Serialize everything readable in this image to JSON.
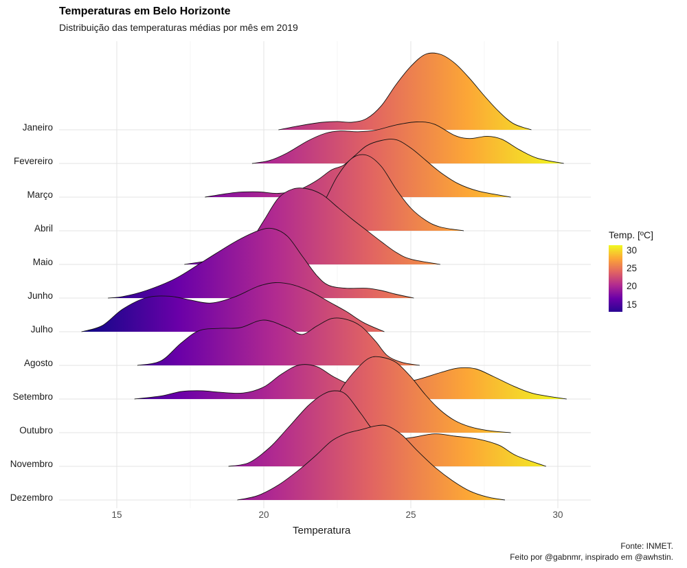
{
  "header": {
    "title": "Temperaturas em Belo Horizonte",
    "subtitle": "Distribuição das temperaturas médias por mês em 2019"
  },
  "caption": {
    "line1": "Fonte: INMET.",
    "line2": "Feito por @gabnmr, inspirado em @awhstin."
  },
  "legend": {
    "title": "Temp. [ºC]",
    "ticks": [
      "30",
      "25",
      "20",
      "15"
    ],
    "colors": [
      "#0d0887",
      "#6a00a8",
      "#b12a90",
      "#e16462",
      "#fca636",
      "#f0f921"
    ]
  },
  "chart_data": {
    "type": "ridgeline",
    "title": "Temperaturas em Belo Horizonte",
    "subtitle": "Distribuição das temperaturas médias por mês em 2019",
    "xlabel": "Temperatura",
    "ylabel": "",
    "xlim": [
      13.0,
      31.2
    ],
    "xticks": [
      15,
      20,
      25,
      30
    ],
    "color_scale": "plasma",
    "color_range": [
      13.6,
      31.2
    ],
    "grid": true,
    "legend_position": "right",
    "series": [
      {
        "name": "Janeiro",
        "range": [
          20.5,
          29.1
        ],
        "points": [
          [
            20.5,
            0
          ],
          [
            21.3,
            0.06
          ],
          [
            22,
            0.1
          ],
          [
            22.5,
            0.11
          ],
          [
            23,
            0.1
          ],
          [
            23.5,
            0.15
          ],
          [
            24,
            0.32
          ],
          [
            24.5,
            0.6
          ],
          [
            25,
            0.84
          ],
          [
            25.5,
            1.0
          ],
          [
            26,
            1.0
          ],
          [
            26.5,
            0.88
          ],
          [
            27,
            0.68
          ],
          [
            27.5,
            0.45
          ],
          [
            28,
            0.24
          ],
          [
            28.5,
            0.08
          ],
          [
            29.1,
            0
          ]
        ]
      },
      {
        "name": "Fevereiro",
        "range": [
          19.6,
          30.2
        ],
        "points": [
          [
            19.6,
            0
          ],
          [
            20.2,
            0.04
          ],
          [
            20.8,
            0.14
          ],
          [
            21.5,
            0.3
          ],
          [
            22.1,
            0.4
          ],
          [
            22.6,
            0.43
          ],
          [
            23.2,
            0.42
          ],
          [
            23.8,
            0.44
          ],
          [
            24.5,
            0.51
          ],
          [
            25.2,
            0.55
          ],
          [
            25.8,
            0.52
          ],
          [
            26.5,
            0.37
          ],
          [
            27,
            0.33
          ],
          [
            27.6,
            0.36
          ],
          [
            28.1,
            0.32
          ],
          [
            28.7,
            0.18
          ],
          [
            29.3,
            0.07
          ],
          [
            30.2,
            0
          ]
        ]
      },
      {
        "name": "Março",
        "range": [
          18.0,
          28.4
        ],
        "points": [
          [
            18,
            0
          ],
          [
            19,
            0.06
          ],
          [
            19.8,
            0.07
          ],
          [
            20.5,
            0.05
          ],
          [
            21.2,
            0.1
          ],
          [
            21.8,
            0.22
          ],
          [
            22.3,
            0.36
          ],
          [
            22.7,
            0.42
          ],
          [
            23.1,
            0.55
          ],
          [
            23.5,
            0.68
          ],
          [
            24,
            0.75
          ],
          [
            24.5,
            0.76
          ],
          [
            25,
            0.65
          ],
          [
            25.5,
            0.49
          ],
          [
            26,
            0.33
          ],
          [
            26.6,
            0.18
          ],
          [
            27.3,
            0.08
          ],
          [
            28.4,
            0
          ]
        ]
      },
      {
        "name": "Abril",
        "range": [
          20.4,
          26.8
        ],
        "points": [
          [
            20.4,
            0
          ],
          [
            21,
            0.02
          ],
          [
            21.5,
            0.1
          ],
          [
            22,
            0.35
          ],
          [
            22.5,
            0.72
          ],
          [
            23,
            0.96
          ],
          [
            23.5,
            1.0
          ],
          [
            24,
            0.85
          ],
          [
            24.5,
            0.55
          ],
          [
            25,
            0.3
          ],
          [
            25.5,
            0.14
          ],
          [
            26,
            0.05
          ],
          [
            26.8,
            0
          ]
        ]
      },
      {
        "name": "Maio",
        "range": [
          17.3,
          26.0
        ],
        "points": [
          [
            17.3,
            0
          ],
          [
            18,
            0.04
          ],
          [
            18.5,
            0.06
          ],
          [
            19,
            0.12
          ],
          [
            19.5,
            0.28
          ],
          [
            20,
            0.58
          ],
          [
            20.5,
            0.88
          ],
          [
            21,
            1.0
          ],
          [
            21.5,
            1.0
          ],
          [
            22,
            0.92
          ],
          [
            22.5,
            0.76
          ],
          [
            23,
            0.6
          ],
          [
            23.5,
            0.45
          ],
          [
            24,
            0.3
          ],
          [
            24.5,
            0.16
          ],
          [
            25,
            0.07
          ],
          [
            26,
            0
          ]
        ]
      },
      {
        "name": "Junho",
        "range": [
          14.7,
          25.1
        ],
        "points": [
          [
            14.7,
            0
          ],
          [
            15.2,
            0.02
          ],
          [
            16,
            0.1
          ],
          [
            17,
            0.26
          ],
          [
            18,
            0.5
          ],
          [
            19,
            0.74
          ],
          [
            19.8,
            0.89
          ],
          [
            20.3,
            0.92
          ],
          [
            20.8,
            0.82
          ],
          [
            21.3,
            0.56
          ],
          [
            21.8,
            0.3
          ],
          [
            22.2,
            0.17
          ],
          [
            22.8,
            0.13
          ],
          [
            23.5,
            0.13
          ],
          [
            24,
            0.1
          ],
          [
            24.5,
            0.05
          ],
          [
            25.1,
            0
          ]
        ]
      },
      {
        "name": "Julho",
        "range": [
          13.8,
          24.1
        ],
        "points": [
          [
            13.8,
            0
          ],
          [
            14.5,
            0.08
          ],
          [
            15.2,
            0.3
          ],
          [
            16,
            0.45
          ],
          [
            16.8,
            0.47
          ],
          [
            17.5,
            0.42
          ],
          [
            18.2,
            0.38
          ],
          [
            19,
            0.46
          ],
          [
            19.8,
            0.6
          ],
          [
            20.4,
            0.65
          ],
          [
            21,
            0.62
          ],
          [
            21.6,
            0.53
          ],
          [
            22.2,
            0.4
          ],
          [
            22.8,
            0.27
          ],
          [
            23.4,
            0.12
          ],
          [
            24.1,
            0
          ]
        ]
      },
      {
        "name": "Agosto",
        "range": [
          15.7,
          25.3
        ],
        "points": [
          [
            15.7,
            0
          ],
          [
            16.5,
            0.06
          ],
          [
            17.2,
            0.3
          ],
          [
            17.8,
            0.46
          ],
          [
            18.5,
            0.49
          ],
          [
            19.2,
            0.5
          ],
          [
            20,
            0.6
          ],
          [
            20.8,
            0.5
          ],
          [
            21.3,
            0.41
          ],
          [
            21.8,
            0.52
          ],
          [
            22.3,
            0.62
          ],
          [
            22.8,
            0.61
          ],
          [
            23.3,
            0.52
          ],
          [
            23.8,
            0.32
          ],
          [
            24.2,
            0.13
          ],
          [
            24.7,
            0.04
          ],
          [
            25.3,
            0
          ]
        ]
      },
      {
        "name": "Setembro",
        "range": [
          15.6,
          30.3
        ],
        "points": [
          [
            15.6,
            0
          ],
          [
            16.5,
            0.04
          ],
          [
            17.2,
            0.1
          ],
          [
            17.9,
            0.11
          ],
          [
            18.5,
            0.09
          ],
          [
            19.3,
            0.08
          ],
          [
            20,
            0.16
          ],
          [
            20.6,
            0.33
          ],
          [
            21.2,
            0.45
          ],
          [
            21.8,
            0.43
          ],
          [
            22.4,
            0.29
          ],
          [
            23,
            0.2
          ],
          [
            24,
            0.23
          ],
          [
            25,
            0.24
          ],
          [
            26,
            0.35
          ],
          [
            26.6,
            0.41
          ],
          [
            27.2,
            0.4
          ],
          [
            27.8,
            0.3
          ],
          [
            28.5,
            0.17
          ],
          [
            29.2,
            0.07
          ],
          [
            30.3,
            0
          ]
        ]
      },
      {
        "name": "Outubro",
        "range": [
          21.0,
          28.4
        ],
        "points": [
          [
            21,
            0
          ],
          [
            21.6,
            0.05
          ],
          [
            22.2,
            0.28
          ],
          [
            22.7,
            0.62
          ],
          [
            23.2,
            0.86
          ],
          [
            23.6,
            0.99
          ],
          [
            24,
            1.0
          ],
          [
            24.5,
            0.93
          ],
          [
            25,
            0.74
          ],
          [
            25.5,
            0.5
          ],
          [
            26,
            0.3
          ],
          [
            26.5,
            0.16
          ],
          [
            27,
            0.08
          ],
          [
            27.6,
            0.03
          ],
          [
            28.4,
            0
          ]
        ]
      },
      {
        "name": "Novembro",
        "range": [
          18.8,
          29.6
        ],
        "points": [
          [
            18.8,
            0
          ],
          [
            19.5,
            0.05
          ],
          [
            20.2,
            0.25
          ],
          [
            20.8,
            0.5
          ],
          [
            21.5,
            0.8
          ],
          [
            22,
            0.95
          ],
          [
            22.4,
            1.0
          ],
          [
            22.8,
            0.95
          ],
          [
            23.3,
            0.7
          ],
          [
            23.8,
            0.45
          ],
          [
            24.4,
            0.36
          ],
          [
            25,
            0.38
          ],
          [
            25.8,
            0.43
          ],
          [
            26.5,
            0.4
          ],
          [
            27.3,
            0.36
          ],
          [
            28,
            0.28
          ],
          [
            28.6,
            0.14
          ],
          [
            29.6,
            0
          ]
        ]
      },
      {
        "name": "Dezembro",
        "range": [
          19.1,
          28.2
        ],
        "points": [
          [
            19.1,
            0
          ],
          [
            19.8,
            0.06
          ],
          [
            20.5,
            0.2
          ],
          [
            21.2,
            0.4
          ],
          [
            21.8,
            0.6
          ],
          [
            22.3,
            0.78
          ],
          [
            22.8,
            0.88
          ],
          [
            23.3,
            0.93
          ],
          [
            23.8,
            0.98
          ],
          [
            24.2,
            0.98
          ],
          [
            24.7,
            0.86
          ],
          [
            25.2,
            0.66
          ],
          [
            25.8,
            0.44
          ],
          [
            26.4,
            0.26
          ],
          [
            27,
            0.12
          ],
          [
            27.6,
            0.04
          ],
          [
            28.2,
            0
          ]
        ]
      }
    ]
  }
}
